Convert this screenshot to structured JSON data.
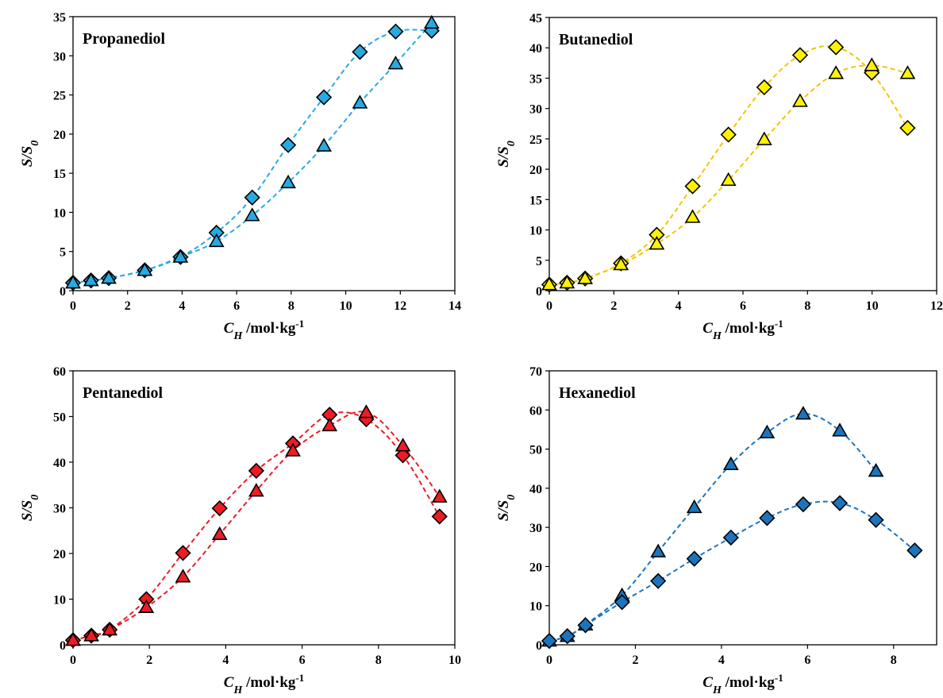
{
  "x_label": {
    "main": "C",
    "sub": "H",
    "unit": " /mol·kg",
    "sup": "-1"
  },
  "y_label": {
    "main": "S/S",
    "sub": "0"
  },
  "chart_data": [
    {
      "type": "scatter",
      "title": "Propanediol",
      "color": "#29A9E0",
      "xlim": [
        0,
        14
      ],
      "xticks": [
        0,
        2,
        4,
        6,
        8,
        10,
        12,
        14
      ],
      "ylim": [
        0,
        35
      ],
      "yticks": [
        0,
        5,
        10,
        15,
        20,
        25,
        30,
        35
      ],
      "series": [
        {
          "marker": "diamond",
          "x": [
            0,
            0.66,
            1.31,
            2.63,
            3.94,
            5.26,
            6.57,
            7.89,
            9.2,
            10.52,
            11.83,
            13.15
          ],
          "y": [
            1.0,
            1.3,
            1.6,
            2.6,
            4.3,
            7.4,
            11.9,
            18.6,
            24.7,
            30.5,
            33.1,
            33.2
          ]
        },
        {
          "marker": "triangle",
          "x": [
            0,
            0.66,
            1.31,
            2.63,
            3.94,
            5.26,
            6.57,
            7.89,
            9.2,
            10.52,
            11.83,
            13.15
          ],
          "y": [
            1.0,
            1.3,
            1.6,
            2.6,
            4.3,
            6.3,
            9.6,
            13.8,
            18.5,
            24.0,
            29.0,
            34.2
          ]
        }
      ]
    },
    {
      "type": "scatter",
      "title": "Butanediol",
      "color": "#FFF200",
      "fit_color": "#F5C400",
      "xlim": [
        0,
        12
      ],
      "xticks": [
        0,
        2,
        4,
        6,
        8,
        10,
        12
      ],
      "ylim": [
        0,
        45
      ],
      "yticks": [
        0,
        5,
        10,
        15,
        20,
        25,
        30,
        35,
        40,
        45
      ],
      "series": [
        {
          "marker": "diamond",
          "x": [
            0,
            0.55,
            1.11,
            2.22,
            3.33,
            4.44,
            5.55,
            6.66,
            7.77,
            8.88,
            9.99,
            11.1
          ],
          "y": [
            1.0,
            1.3,
            2.0,
            4.5,
            9.2,
            17.2,
            25.7,
            33.5,
            38.8,
            40.1,
            35.9,
            26.8
          ]
        },
        {
          "marker": "triangle",
          "x": [
            0,
            0.55,
            1.11,
            2.22,
            3.33,
            4.44,
            5.55,
            6.66,
            7.77,
            8.88,
            9.99,
            11.1
          ],
          "y": [
            1.0,
            1.3,
            2.0,
            4.3,
            7.7,
            12.1,
            18.2,
            24.9,
            31.2,
            35.8,
            37.1,
            35.8
          ]
        }
      ]
    },
    {
      "type": "scatter",
      "title": "Pentanediol",
      "color": "#ED1C24",
      "xlim": [
        0,
        10
      ],
      "xticks": [
        0,
        2,
        4,
        6,
        8,
        10
      ],
      "ylim": [
        0,
        60
      ],
      "yticks": [
        0,
        10,
        20,
        30,
        40,
        50,
        60
      ],
      "series": [
        {
          "marker": "diamond",
          "x": [
            0,
            0.48,
            0.96,
            1.92,
            2.88,
            3.84,
            4.8,
            5.76,
            6.72,
            7.68,
            8.64,
            9.6
          ],
          "y": [
            1.0,
            2.0,
            3.3,
            10.0,
            20.1,
            29.9,
            38.1,
            44.1,
            50.4,
            49.4,
            41.5,
            28.1
          ]
        },
        {
          "marker": "triangle",
          "x": [
            0,
            0.48,
            0.96,
            1.92,
            2.88,
            3.84,
            4.8,
            5.76,
            6.72,
            7.68,
            8.64,
            9.6
          ],
          "y": [
            1.0,
            2.0,
            3.3,
            8.2,
            14.9,
            24.2,
            33.7,
            42.5,
            48.0,
            50.9,
            43.6,
            32.4
          ]
        }
      ]
    },
    {
      "type": "scatter",
      "title": "Hexanediol",
      "color": "#1C75BC",
      "xlim": [
        0,
        9
      ],
      "xticks": [
        0,
        2,
        4,
        6,
        8
      ],
      "ylim": [
        0,
        70
      ],
      "yticks": [
        0,
        10,
        20,
        30,
        40,
        50,
        60,
        70
      ],
      "series": [
        {
          "marker": "triangle",
          "x": [
            0,
            0.42,
            0.84,
            1.69,
            2.53,
            3.37,
            4.22,
            5.06,
            5.9,
            6.75,
            7.59
          ],
          "y": [
            1.0,
            2.2,
            5.1,
            12.6,
            23.8,
            35.1,
            46.1,
            54.2,
            59.0,
            54.7,
            44.4
          ]
        },
        {
          "marker": "diamond",
          "x": [
            0,
            0.42,
            0.84,
            1.69,
            2.53,
            3.37,
            4.22,
            5.06,
            5.9,
            6.75,
            7.59,
            8.49
          ],
          "y": [
            1.0,
            2.2,
            5.0,
            10.9,
            16.3,
            22.0,
            27.4,
            32.4,
            35.9,
            36.2,
            31.9,
            24.1
          ]
        }
      ]
    }
  ]
}
